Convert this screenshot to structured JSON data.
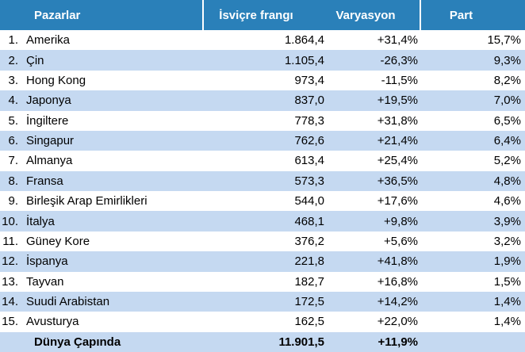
{
  "colors": {
    "header_bg": "#2A80B9",
    "header_text": "#FFFFFF",
    "stripe_bg": "#C5D9F1",
    "body_text": "#000000"
  },
  "chart_data": {
    "type": "table",
    "columns": [
      "Pazarlar",
      "İsviçre frangı",
      "Varyasyon",
      "Part"
    ],
    "rows": [
      {
        "rank": "1.",
        "market": "Amerika",
        "chf": "1.864,4",
        "variation": "+31,4%",
        "share": "15,7%"
      },
      {
        "rank": "2.",
        "market": "Çin",
        "chf": "1.105,4",
        "variation": "-26,3%",
        "share": "9,3%"
      },
      {
        "rank": "3.",
        "market": "Hong Kong",
        "chf": "973,4",
        "variation": "-11,5%",
        "share": "8,2%"
      },
      {
        "rank": "4.",
        "market": "Japonya",
        "chf": "837,0",
        "variation": "+19,5%",
        "share": "7,0%"
      },
      {
        "rank": "5.",
        "market": "İngiltere",
        "chf": "778,3",
        "variation": "+31,8%",
        "share": "6,5%"
      },
      {
        "rank": "6.",
        "market": "Singapur",
        "chf": "762,6",
        "variation": "+21,4%",
        "share": "6,4%"
      },
      {
        "rank": "7.",
        "market": "Almanya",
        "chf": "613,4",
        "variation": "+25,4%",
        "share": "5,2%"
      },
      {
        "rank": "8.",
        "market": "Fransa",
        "chf": "573,3",
        "variation": "+36,5%",
        "share": "4,8%"
      },
      {
        "rank": "9.",
        "market": "Birleşik Arap Emirlikleri",
        "chf": "544,0",
        "variation": "+17,6%",
        "share": "4,6%"
      },
      {
        "rank": "10.",
        "market": "İtalya",
        "chf": "468,1",
        "variation": "+9,8%",
        "share": "3,9%"
      },
      {
        "rank": "11.",
        "market": "Güney Kore",
        "chf": "376,2",
        "variation": "+5,6%",
        "share": "3,2%"
      },
      {
        "rank": "12.",
        "market": "İspanya",
        "chf": "221,8",
        "variation": "+41,8%",
        "share": "1,9%"
      },
      {
        "rank": "13.",
        "market": "Tayvan",
        "chf": "182,7",
        "variation": "+16,8%",
        "share": "1,5%"
      },
      {
        "rank": "14.",
        "market": "Suudi Arabistan",
        "chf": "172,5",
        "variation": "+14,2%",
        "share": "1,4%"
      },
      {
        "rank": "15.",
        "market": "Avusturya",
        "chf": "162,5",
        "variation": "+22,0%",
        "share": "1,4%"
      }
    ],
    "footer": {
      "rank": "",
      "market": "Dünya Çapında",
      "chf": "11.901,5",
      "variation": "+11,9%",
      "share": ""
    },
    "layout": {
      "striped": true,
      "stripe_start": "second_row",
      "header_separators_after": [
        "Pazarlar",
        "Varyasyon"
      ]
    }
  },
  "header": {
    "col_markets": "Pazarlar",
    "col_chf": "İsviçre frangı",
    "col_variation": "Varyasyon",
    "col_share": "Part"
  }
}
